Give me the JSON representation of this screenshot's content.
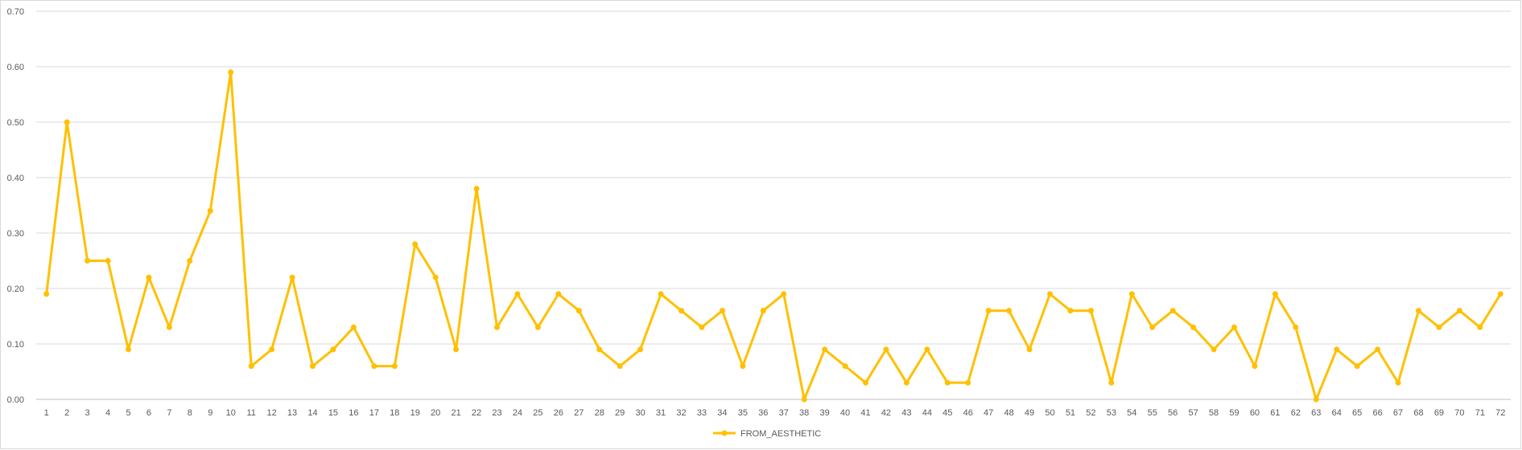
{
  "chart_data": {
    "type": "line",
    "title": "",
    "xlabel": "",
    "ylabel": "",
    "ylim": [
      0,
      0.7
    ],
    "y_ticks": [
      "0.00",
      "0.10",
      "0.20",
      "0.30",
      "0.40",
      "0.50",
      "0.60",
      "0.70"
    ],
    "grid": "horizontal",
    "legend_position": "bottom",
    "categories": [
      "1",
      "2",
      "3",
      "4",
      "5",
      "6",
      "7",
      "8",
      "9",
      "10",
      "11",
      "12",
      "13",
      "14",
      "15",
      "16",
      "17",
      "18",
      "19",
      "20",
      "21",
      "22",
      "23",
      "24",
      "25",
      "26",
      "27",
      "28",
      "29",
      "30",
      "31",
      "32",
      "33",
      "34",
      "35",
      "36",
      "37",
      "38",
      "39",
      "40",
      "41",
      "42",
      "43",
      "44",
      "45",
      "46",
      "47",
      "48",
      "49",
      "50",
      "51",
      "52",
      "53",
      "54",
      "55",
      "56",
      "57",
      "58",
      "59",
      "60",
      "61",
      "62",
      "63",
      "64",
      "65",
      "66",
      "67",
      "68",
      "69",
      "70",
      "71",
      "72"
    ],
    "series": [
      {
        "name": "FROM_AESTHETIC",
        "color": "#FFC000",
        "values": [
          0.19,
          0.5,
          0.25,
          0.25,
          0.09,
          0.22,
          0.13,
          0.25,
          0.34,
          0.59,
          0.06,
          0.09,
          0.22,
          0.06,
          0.09,
          0.13,
          0.06,
          0.06,
          0.28,
          0.22,
          0.09,
          0.38,
          0.13,
          0.19,
          0.13,
          0.19,
          0.16,
          0.09,
          0.06,
          0.09,
          0.19,
          0.16,
          0.13,
          0.16,
          0.06,
          0.16,
          0.19,
          0.0,
          0.09,
          0.06,
          0.03,
          0.09,
          0.03,
          0.09,
          0.03,
          0.03,
          0.16,
          0.16,
          0.09,
          0.19,
          0.16,
          0.16,
          0.03,
          0.19,
          0.13,
          0.16,
          0.13,
          0.09,
          0.13,
          0.06,
          0.19,
          0.13,
          0.0,
          0.09,
          0.06,
          0.09,
          0.03,
          0.16,
          0.13,
          0.16,
          0.13,
          0.19
        ]
      }
    ]
  }
}
